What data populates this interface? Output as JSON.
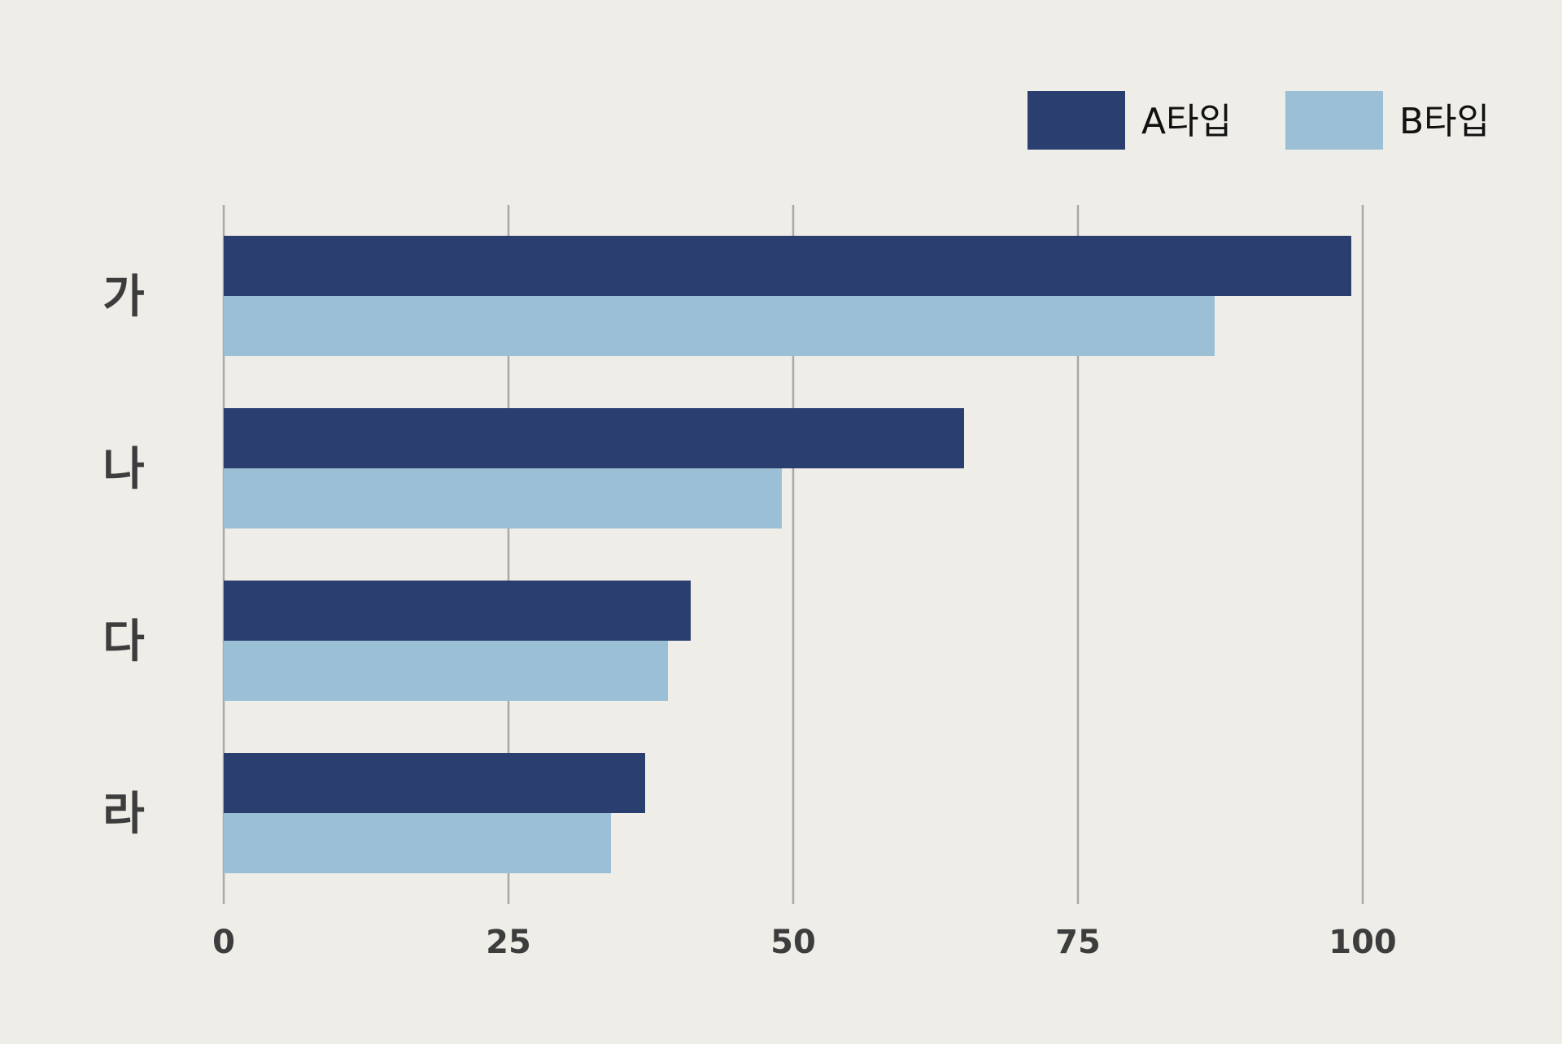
{
  "chart_data": {
    "type": "bar",
    "orientation": "horizontal",
    "categories": [
      "가",
      "나",
      "다",
      "라"
    ],
    "series": [
      {
        "name": "A타입",
        "color": "#2a3f6f",
        "values": [
          99,
          65,
          41,
          37
        ]
      },
      {
        "name": "B타입",
        "color": "#9bc0d6",
        "values": [
          87,
          49,
          39,
          34
        ]
      }
    ],
    "xlim": [
      0,
      100
    ],
    "xticks": [
      0,
      25,
      50,
      75,
      100
    ],
    "xtick_labels": [
      "0",
      "25",
      "50",
      "75",
      "100"
    ],
    "title": "",
    "xlabel": "",
    "ylabel": "",
    "grid": "vertical",
    "legend_position": "top-right",
    "colors": {
      "background": "#eeede7",
      "grid": "#a9a9a9",
      "text": "#3d3d3d"
    }
  }
}
